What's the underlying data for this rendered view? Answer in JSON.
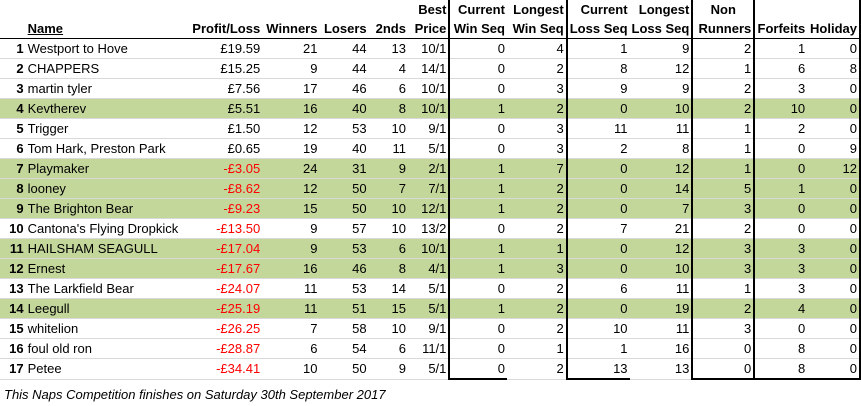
{
  "headers": {
    "row1": {
      "best": "Best",
      "current_win": "Current",
      "longest_win": "Longest",
      "current_loss": "Current",
      "longest_loss": "Longest",
      "non": "Non"
    },
    "row2": {
      "name": "Name",
      "profit": "Profit/Loss",
      "winners": "Winners",
      "losers": "Losers",
      "seconds": "2nds",
      "price": "Price",
      "current_win": "Win Seq",
      "longest_win": "Win Seq",
      "current_loss": "Loss Seq",
      "longest_loss": "Loss Seq",
      "runners": "Runners",
      "forfeits": "Forfeits",
      "holiday": "Holiday"
    }
  },
  "rows": [
    {
      "pos": "1",
      "name": "Westport to Hove",
      "profit": "£19.59",
      "winners": "21",
      "losers": "44",
      "seconds": "13",
      "price": "10/1",
      "cws": "0",
      "lws": "4",
      "cls": "1",
      "lls": "9",
      "nr": "2",
      "ff": "1",
      "hol": "0",
      "green": false,
      "neg": false
    },
    {
      "pos": "2",
      "name": "CHAPPERS",
      "profit": "£15.25",
      "winners": "9",
      "losers": "44",
      "seconds": "4",
      "price": "14/1",
      "cws": "0",
      "lws": "2",
      "cls": "8",
      "lls": "12",
      "nr": "1",
      "ff": "6",
      "hol": "8",
      "green": false,
      "neg": false
    },
    {
      "pos": "3",
      "name": "martin tyler",
      "profit": "£7.56",
      "winners": "17",
      "losers": "46",
      "seconds": "6",
      "price": "10/1",
      "cws": "0",
      "lws": "3",
      "cls": "9",
      "lls": "9",
      "nr": "2",
      "ff": "3",
      "hol": "0",
      "green": false,
      "neg": false
    },
    {
      "pos": "4",
      "name": "Kevtherev",
      "profit": "£5.51",
      "winners": "16",
      "losers": "40",
      "seconds": "8",
      "price": "10/1",
      "cws": "1",
      "lws": "2",
      "cls": "0",
      "lls": "10",
      "nr": "2",
      "ff": "10",
      "hol": "0",
      "green": true,
      "neg": false
    },
    {
      "pos": "5",
      "name": "Trigger",
      "profit": "£1.50",
      "winners": "12",
      "losers": "53",
      "seconds": "10",
      "price": "9/1",
      "cws": "0",
      "lws": "3",
      "cls": "11",
      "lls": "11",
      "nr": "1",
      "ff": "2",
      "hol": "0",
      "green": false,
      "neg": false
    },
    {
      "pos": "6",
      "name": "Tom Hark, Preston Park",
      "profit": "£0.65",
      "winners": "19",
      "losers": "40",
      "seconds": "11",
      "price": "5/1",
      "cws": "0",
      "lws": "3",
      "cls": "2",
      "lls": "8",
      "nr": "1",
      "ff": "0",
      "hol": "9",
      "green": false,
      "neg": false
    },
    {
      "pos": "7",
      "name": "Playmaker",
      "profit": "-£3.05",
      "winners": "24",
      "losers": "31",
      "seconds": "9",
      "price": "2/1",
      "cws": "1",
      "lws": "7",
      "cls": "0",
      "lls": "12",
      "nr": "1",
      "ff": "0",
      "hol": "12",
      "green": true,
      "neg": true
    },
    {
      "pos": "8",
      "name": "looney",
      "profit": "-£8.62",
      "winners": "12",
      "losers": "50",
      "seconds": "7",
      "price": "7/1",
      "cws": "1",
      "lws": "2",
      "cls": "0",
      "lls": "14",
      "nr": "5",
      "ff": "1",
      "hol": "0",
      "green": true,
      "neg": true
    },
    {
      "pos": "9",
      "name": "The Brighton Bear",
      "profit": "-£9.23",
      "winners": "15",
      "losers": "50",
      "seconds": "10",
      "price": "12/1",
      "cws": "1",
      "lws": "2",
      "cls": "0",
      "lls": "7",
      "nr": "3",
      "ff": "0",
      "hol": "0",
      "green": true,
      "neg": true
    },
    {
      "pos": "10",
      "name": "Cantona's Flying Dropkick",
      "profit": "-£13.50",
      "winners": "9",
      "losers": "57",
      "seconds": "10",
      "price": "13/2",
      "cws": "0",
      "lws": "2",
      "cls": "7",
      "lls": "21",
      "nr": "2",
      "ff": "0",
      "hol": "0",
      "green": false,
      "neg": true
    },
    {
      "pos": "11",
      "name": "HAILSHAM SEAGULL",
      "profit": "-£17.04",
      "winners": "9",
      "losers": "53",
      "seconds": "6",
      "price": "10/1",
      "cws": "1",
      "lws": "1",
      "cls": "0",
      "lls": "12",
      "nr": "3",
      "ff": "3",
      "hol": "0",
      "green": true,
      "neg": true
    },
    {
      "pos": "12",
      "name": "Ernest",
      "profit": "-£17.67",
      "winners": "16",
      "losers": "46",
      "seconds": "8",
      "price": "4/1",
      "cws": "1",
      "lws": "3",
      "cls": "0",
      "lls": "10",
      "nr": "3",
      "ff": "3",
      "hol": "0",
      "green": true,
      "neg": true
    },
    {
      "pos": "13",
      "name": "The Larkfield Bear",
      "profit": "-£24.07",
      "winners": "11",
      "losers": "53",
      "seconds": "14",
      "price": "5/1",
      "cws": "0",
      "lws": "2",
      "cls": "6",
      "lls": "11",
      "nr": "1",
      "ff": "3",
      "hol": "0",
      "green": false,
      "neg": true
    },
    {
      "pos": "14",
      "name": "Leegull",
      "profit": "-£25.19",
      "winners": "11",
      "losers": "51",
      "seconds": "15",
      "price": "5/1",
      "cws": "1",
      "lws": "2",
      "cls": "0",
      "lls": "19",
      "nr": "2",
      "ff": "4",
      "hol": "0",
      "green": true,
      "neg": true
    },
    {
      "pos": "15",
      "name": "whitelion",
      "profit": "-£26.25",
      "winners": "7",
      "losers": "58",
      "seconds": "10",
      "price": "9/1",
      "cws": "0",
      "lws": "2",
      "cls": "10",
      "lls": "11",
      "nr": "3",
      "ff": "0",
      "hol": "0",
      "green": false,
      "neg": true
    },
    {
      "pos": "16",
      "name": "foul old ron",
      "profit": "-£28.87",
      "winners": "6",
      "losers": "54",
      "seconds": "6",
      "price": "11/1",
      "cws": "0",
      "lws": "1",
      "cls": "1",
      "lls": "16",
      "nr": "0",
      "ff": "8",
      "hol": "0",
      "green": false,
      "neg": true
    },
    {
      "pos": "17",
      "name": "Petee",
      "profit": "-£34.41",
      "winners": "10",
      "losers": "50",
      "seconds": "9",
      "price": "5/1",
      "cws": "0",
      "lws": "2",
      "cls": "13",
      "lls": "13",
      "nr": "0",
      "ff": "8",
      "hol": "0",
      "green": false,
      "neg": true
    }
  ],
  "footnote": "This Naps Competition finishes on Saturday 30th September 2017",
  "colors": {
    "highlight": "#c4d79b",
    "negative": "#ff0000"
  }
}
